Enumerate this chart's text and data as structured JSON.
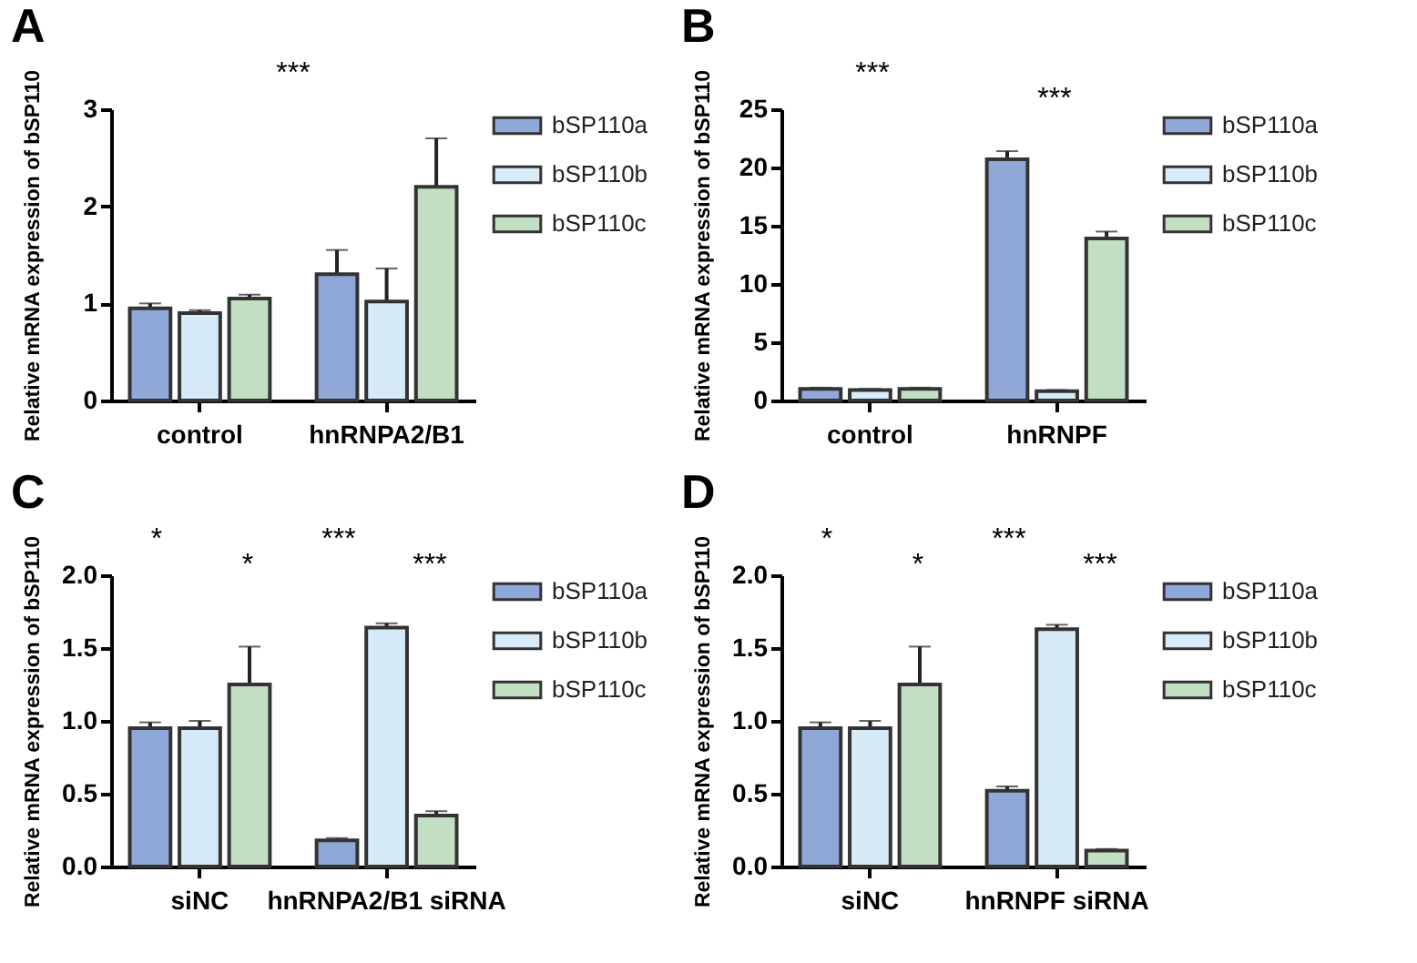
{
  "chart_data": [
    {
      "type": "bar",
      "title": "A",
      "ylabel": "Relative mRNA expression of bSP110",
      "categories": [
        "control",
        "hnRNPA2/B1"
      ],
      "legend": "right",
      "ylim": [
        0,
        3
      ],
      "yticks": [
        0,
        1,
        2,
        3
      ],
      "series": [
        {
          "name": "bSP110a",
          "color": "#8fa8d8",
          "values": [
            0.95,
            1.3
          ],
          "errors": [
            0.05,
            0.25
          ]
        },
        {
          "name": "bSP110b",
          "color": "#d6ebf7",
          "values": [
            0.9,
            1.02
          ],
          "errors": [
            0.03,
            0.34
          ]
        },
        {
          "name": "bSP110c",
          "color": "#c3dfc3",
          "values": [
            1.05,
            2.2
          ],
          "errors": [
            0.04,
            0.5
          ]
        }
      ],
      "annotations": [
        "***"
      ]
    },
    {
      "type": "bar",
      "title": "B",
      "ylabel": "Relative mRNA expression of bSP110",
      "categories": [
        "control",
        "hnRNPF"
      ],
      "legend": "right",
      "ylim": [
        0,
        25
      ],
      "yticks": [
        0,
        5,
        10,
        15,
        20,
        25
      ],
      "series": [
        {
          "name": "bSP110a",
          "color": "#8fa8d8",
          "values": [
            1,
            20.7
          ],
          "errors": [
            0.1,
            0.7
          ]
        },
        {
          "name": "bSP110b",
          "color": "#d6ebf7",
          "values": [
            0.9,
            0.8
          ],
          "errors": [
            0.1,
            0.1
          ]
        },
        {
          "name": "bSP110c",
          "color": "#c3dfc3",
          "values": [
            1,
            13.9
          ],
          "errors": [
            0.1,
            0.6
          ]
        }
      ],
      "annotations": [
        "***",
        "***"
      ]
    },
    {
      "type": "bar",
      "title": "C",
      "ylabel": "Relative mRNA expression of bSP110",
      "categories": [
        "siNC",
        "hnRNPA2/B1 siRNA"
      ],
      "legend": "right",
      "ylim": [
        0,
        2
      ],
      "yticks": [
        {
          "value": 0,
          "label": "0.0"
        },
        {
          "value": 0.5,
          "label": "0.5"
        },
        {
          "value": 1,
          "label": "1.0"
        },
        {
          "value": 1.5,
          "label": "1.5"
        },
        {
          "value": 2,
          "label": "2.0"
        }
      ],
      "series": [
        {
          "name": "bSP110a",
          "color": "#8fa8d8",
          "values": [
            0.95,
            0.18
          ],
          "errors": [
            0.04,
            0.015
          ]
        },
        {
          "name": "bSP110b",
          "color": "#d6ebf7",
          "values": [
            0.95,
            1.64
          ],
          "errors": [
            0.05,
            0.03
          ]
        },
        {
          "name": "bSP110c",
          "color": "#c3dfc3",
          "values": [
            1.25,
            0.35
          ],
          "errors": [
            0.26,
            0.03
          ]
        }
      ],
      "annotations": [
        "*",
        "*",
        "***",
        "***"
      ]
    },
    {
      "type": "bar",
      "title": "D",
      "ylabel": "Relative mRNA expression of bSP110",
      "categories": [
        "siNC",
        "hnRNPF siRNA"
      ],
      "legend": "right",
      "ylim": [
        0,
        2
      ],
      "yticks": [
        {
          "value": 0,
          "label": "0.0"
        },
        {
          "value": 0.5,
          "label": "0.5"
        },
        {
          "value": 1,
          "label": "1.0"
        },
        {
          "value": 1.5,
          "label": "1.5"
        },
        {
          "value": 2,
          "label": "2.0"
        }
      ],
      "series": [
        {
          "name": "bSP110a",
          "color": "#8fa8d8",
          "values": [
            0.95,
            0.52
          ],
          "errors": [
            0.04,
            0.03
          ]
        },
        {
          "name": "bSP110b",
          "color": "#d6ebf7",
          "values": [
            0.95,
            1.63
          ],
          "errors": [
            0.05,
            0.03
          ]
        },
        {
          "name": "bSP110c",
          "color": "#c3dfc3",
          "values": [
            1.25,
            0.11
          ],
          "errors": [
            0.26,
            0.01
          ]
        }
      ],
      "annotations": [
        "*",
        "*",
        "***",
        "***"
      ]
    }
  ]
}
